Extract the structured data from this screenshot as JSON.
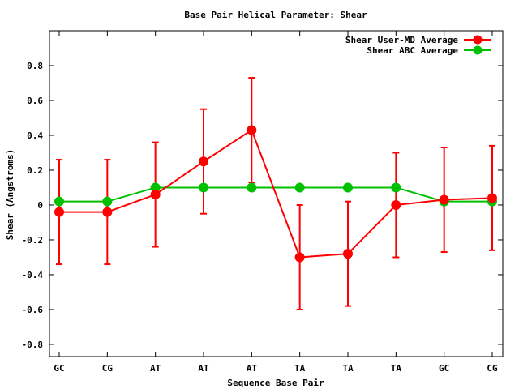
{
  "chart_data": {
    "type": "line",
    "title": "Base Pair Helical Parameter: Shear",
    "xlabel": "Sequence Base Pair",
    "ylabel": "Shear (Angstroms)",
    "categories": [
      "GC",
      "CG",
      "AT",
      "AT",
      "AT",
      "TA",
      "TA",
      "TA",
      "GC",
      "CG"
    ],
    "ylim": [
      -0.87,
      1.0
    ],
    "yticks": [
      -0.8,
      -0.6,
      -0.4,
      -0.2,
      0,
      0.2,
      0.4,
      0.6,
      0.8
    ],
    "ytick_labels": [
      "-0.8",
      "-0.6",
      "-0.4",
      "-0.2",
      "0",
      "0.2",
      "0.4",
      "0.6",
      "0.8"
    ],
    "grid": false,
    "legend_position": "top-right",
    "series": [
      {
        "name": "Shear User-MD Average",
        "color": "#ff0000",
        "values": [
          -0.04,
          -0.04,
          0.06,
          0.25,
          0.43,
          -0.3,
          -0.28,
          0.0,
          0.03,
          0.04
        ],
        "error": [
          0.3,
          0.3,
          0.3,
          0.3,
          0.3,
          0.3,
          0.3,
          0.3,
          0.3,
          0.3
        ]
      },
      {
        "name": "Shear ABC Average",
        "color": "#00c000",
        "values": [
          0.02,
          0.02,
          0.1,
          0.1,
          0.1,
          0.1,
          0.1,
          0.1,
          0.02,
          0.02
        ]
      }
    ]
  }
}
